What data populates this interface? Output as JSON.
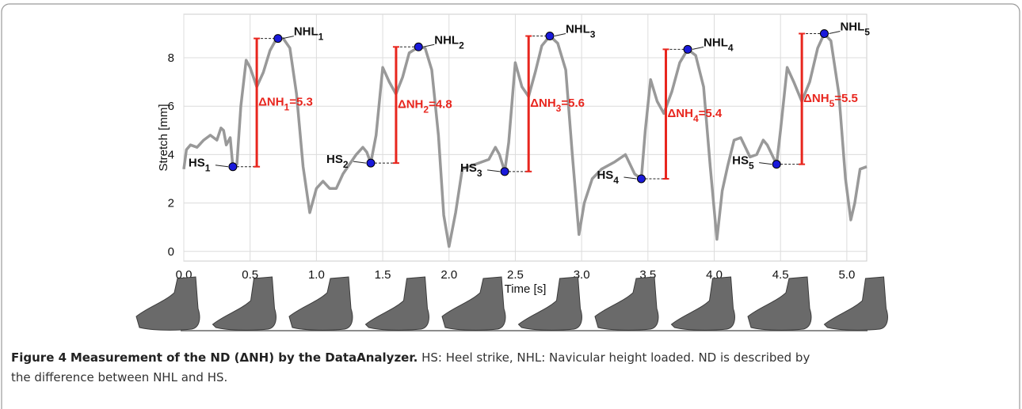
{
  "chart_data": {
    "type": "line",
    "x_label": "Time [s]",
    "y_label": "Stretch [mm]",
    "xlim": [
      0,
      5.15
    ],
    "ylim": [
      -0.4,
      9.8
    ],
    "xticks": [
      {
        "value": 0,
        "label": "0.0"
      },
      0.5,
      {
        "value": 1,
        "label": "1.0"
      },
      1.5,
      {
        "value": 2,
        "label": "2.0"
      },
      2.5,
      {
        "value": 3,
        "label": "3.0"
      },
      3.5,
      {
        "value": 4,
        "label": "4.0"
      },
      4.5,
      {
        "value": 5,
        "label": "5.0"
      }
    ],
    "yticks": [
      0,
      2,
      4,
      6,
      8
    ],
    "grid": true,
    "series": [
      {
        "name": "Stretch",
        "color": "#999999",
        "x": [
          0.0,
          0.02,
          0.05,
          0.1,
          0.15,
          0.2,
          0.25,
          0.28,
          0.3,
          0.32,
          0.35,
          0.37,
          0.4,
          0.43,
          0.47,
          0.5,
          0.55,
          0.6,
          0.65,
          0.7,
          0.75,
          0.8,
          0.85,
          0.9,
          0.95,
          1.0,
          1.05,
          1.1,
          1.15,
          1.2,
          1.25,
          1.3,
          1.35,
          1.38,
          1.41,
          1.45,
          1.5,
          1.55,
          1.6,
          1.65,
          1.7,
          1.77,
          1.82,
          1.87,
          1.92,
          1.96,
          2.0,
          2.05,
          2.1,
          2.2,
          2.3,
          2.35,
          2.38,
          2.42,
          2.45,
          2.5,
          2.55,
          2.6,
          2.65,
          2.7,
          2.76,
          2.82,
          2.88,
          2.93,
          2.98,
          3.02,
          3.08,
          3.15,
          3.25,
          3.33,
          3.4,
          3.45,
          3.48,
          3.52,
          3.57,
          3.62,
          3.68,
          3.74,
          3.8,
          3.86,
          3.92,
          3.97,
          4.02,
          4.06,
          4.1,
          4.15,
          4.2,
          4.27,
          4.32,
          4.37,
          4.4,
          4.47,
          4.5,
          4.55,
          4.6,
          4.66,
          4.72,
          4.78,
          4.83,
          4.88,
          4.94,
          4.99,
          5.03,
          5.06,
          5.1,
          5.15
        ],
        "values": [
          3.4,
          4.2,
          4.4,
          4.3,
          4.6,
          4.8,
          4.6,
          5.1,
          5.0,
          4.4,
          4.7,
          3.5,
          3.6,
          6.0,
          7.9,
          7.6,
          6.8,
          7.4,
          8.3,
          8.8,
          8.8,
          8.4,
          6.5,
          3.5,
          1.6,
          2.6,
          2.9,
          2.6,
          2.6,
          3.2,
          3.6,
          4.0,
          4.3,
          4.1,
          3.65,
          4.8,
          7.6,
          7.0,
          6.5,
          7.2,
          8.2,
          8.45,
          8.4,
          7.5,
          4.8,
          1.5,
          0.2,
          1.6,
          3.4,
          3.6,
          3.8,
          4.3,
          4.0,
          3.3,
          4.5,
          7.8,
          6.8,
          6.4,
          7.4,
          8.5,
          8.9,
          8.6,
          7.5,
          4.0,
          0.7,
          2.0,
          3.0,
          3.4,
          3.7,
          4.0,
          3.2,
          3.0,
          5.0,
          7.1,
          6.2,
          5.7,
          6.6,
          7.8,
          8.35,
          8.1,
          6.8,
          3.5,
          0.5,
          2.5,
          3.5,
          4.6,
          4.7,
          3.9,
          4.0,
          4.6,
          4.4,
          3.6,
          5.0,
          7.6,
          7.0,
          6.2,
          7.0,
          8.4,
          9.0,
          8.7,
          6.5,
          3.0,
          1.3,
          2.0,
          3.4,
          3.5
        ]
      }
    ],
    "annotations": [
      {
        "hs": {
          "x": 0.37,
          "y": 3.5,
          "label": "HS",
          "sub": "1"
        },
        "nhl": {
          "x": 0.71,
          "y": 8.8,
          "label": "NHL",
          "sub": "1"
        },
        "delta": [
          "ΔNH",
          "1",
          "=5.3"
        ]
      },
      {
        "hs": {
          "x": 1.41,
          "y": 3.65,
          "label": "HS",
          "sub": "2"
        },
        "nhl": {
          "x": 1.77,
          "y": 8.45,
          "label": "NHL",
          "sub": "2"
        },
        "delta": [
          "ΔNH",
          "2",
          "=4.8"
        ]
      },
      {
        "hs": {
          "x": 2.42,
          "y": 3.3,
          "label": "HS",
          "sub": "3"
        },
        "nhl": {
          "x": 2.76,
          "y": 8.9,
          "label": "NHL",
          "sub": "3"
        },
        "delta": [
          "ΔNH",
          "3",
          "=5.6"
        ]
      },
      {
        "hs": {
          "x": 3.45,
          "y": 3.0,
          "label": "HS",
          "sub": "4"
        },
        "nhl": {
          "x": 3.8,
          "y": 8.35,
          "label": "NHL",
          "sub": "4"
        },
        "delta": [
          "ΔNH",
          "4",
          "=5.4"
        ]
      },
      {
        "hs": {
          "x": 4.47,
          "y": 3.6,
          "label": "HS",
          "sub": "5"
        },
        "nhl": {
          "x": 4.83,
          "y": 9.0,
          "label": "NHL",
          "sub": "5"
        },
        "delta": [
          "ΔNH",
          "5",
          "=5.5"
        ]
      }
    ]
  },
  "caption": {
    "label": "Figure 4",
    "title": "Measurement of the ND (ΔNH) by the DataAnalyzer.",
    "text": "HS: Heel strike, NHL: Navicular height loaded. ND is described by the difference between NHL and HS."
  }
}
